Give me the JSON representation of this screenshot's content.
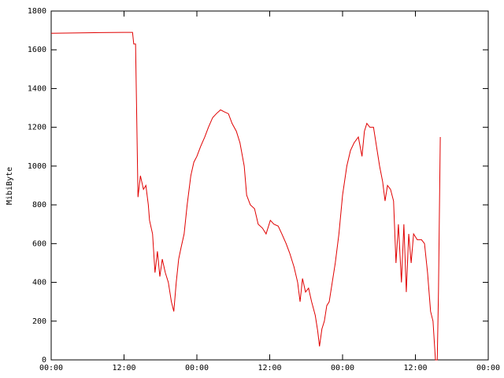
{
  "chart_data": {
    "type": "line",
    "ylabel": "MibiByte",
    "x": [
      0,
      6,
      12,
      13.4,
      13.6,
      13.9,
      14.3,
      14.7,
      15.2,
      15.6,
      16.0,
      16.2,
      16.7,
      17.1,
      17.5,
      17.9,
      18.3,
      18.8,
      19.3,
      19.8,
      20.2,
      20.6,
      21.0,
      21.4,
      21.9,
      22.4,
      23.0,
      23.5,
      24.0,
      24.6,
      25.3,
      25.9,
      26.6,
      27.2,
      27.9,
      28.5,
      29.2,
      29.8,
      30.5,
      31.1,
      31.8,
      32.2,
      32.8,
      33.5,
      34.1,
      34.8,
      35.4,
      36.1,
      36.7,
      37.4,
      38.0,
      38.7,
      39.3,
      40.0,
      40.6,
      41.0,
      41.4,
      41.9,
      42.4,
      42.9,
      43.5,
      43.9,
      44.2,
      44.6,
      45.0,
      45.4,
      45.8,
      46.3,
      46.8,
      47.4,
      48.0,
      48.7,
      49.3,
      49.9,
      50.6,
      51.2,
      51.6,
      52.0,
      52.5,
      53.1,
      53.6,
      54.1,
      54.6,
      55.0,
      55.4,
      55.9,
      56.4,
      56.8,
      57.2,
      57.7,
      58.1,
      58.5,
      58.9,
      59.3,
      59.7,
      60.3,
      61.0,
      61.5,
      62.0,
      62.5,
      62.9,
      63.3,
      63.6,
      63.8,
      64.1
    ],
    "series": [
      {
        "color": "#e00000",
        "values": [
          1685,
          1688,
          1690,
          1690,
          1630,
          1630,
          840,
          950,
          880,
          900,
          800,
          720,
          650,
          450,
          560,
          430,
          520,
          450,
          400,
          300,
          250,
          400,
          520,
          580,
          650,
          800,
          950,
          1020,
          1050,
          1100,
          1150,
          1200,
          1250,
          1270,
          1290,
          1280,
          1270,
          1220,
          1180,
          1120,
          1000,
          850,
          800,
          780,
          700,
          680,
          650,
          720,
          700,
          690,
          650,
          600,
          550,
          480,
          400,
          300,
          420,
          350,
          370,
          300,
          230,
          150,
          70,
          160,
          200,
          280,
          300,
          400,
          500,
          650,
          850,
          1000,
          1080,
          1120,
          1150,
          1050,
          1180,
          1220,
          1200,
          1200,
          1100,
          1000,
          920,
          820,
          900,
          880,
          820,
          500,
          700,
          400,
          700,
          350,
          650,
          500,
          650,
          620,
          620,
          600,
          450,
          250,
          200,
          0,
          0,
          350,
          1150
        ]
      }
    ],
    "xlim": [
      0,
      72
    ],
    "xticks": [
      {
        "value": 0,
        "label": "00:00"
      },
      {
        "value": 12,
        "label": "12:00"
      },
      {
        "value": 24,
        "label": "00:00"
      },
      {
        "value": 36,
        "label": "12:00"
      },
      {
        "value": 48,
        "label": "00:00"
      },
      {
        "value": 60,
        "label": "12:00"
      },
      {
        "value": 72,
        "label": "00:00"
      }
    ],
    "ylim": [
      0,
      1800
    ],
    "yticks": [
      0,
      200,
      400,
      600,
      800,
      1000,
      1200,
      1400,
      1600,
      1800
    ]
  }
}
